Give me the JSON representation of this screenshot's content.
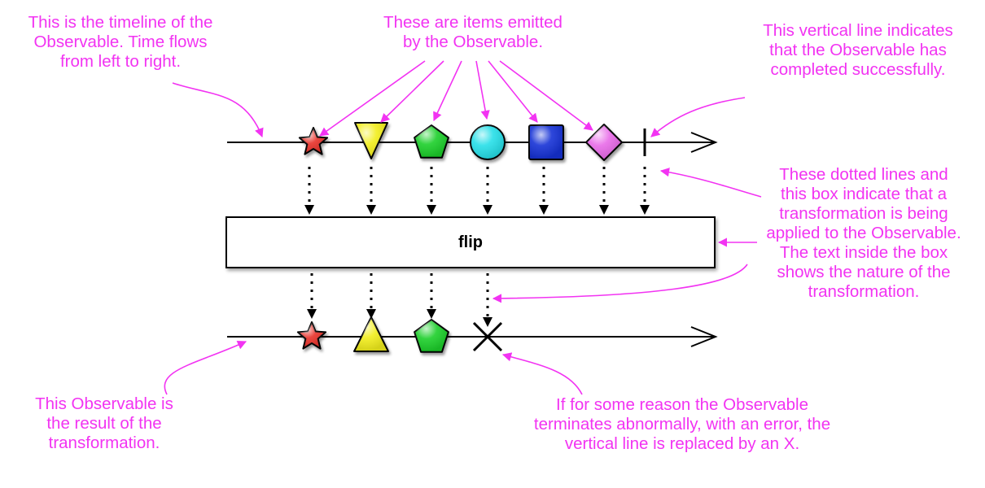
{
  "colors": {
    "annotation": "#f233f2",
    "line": "#000000",
    "star": "#e8312c",
    "triangle": "#f2ee1f",
    "pentagon": "#1fcf2a",
    "circle": "#25dfe8",
    "square": "#1432d6",
    "diamond": "#e86be8"
  },
  "operator": {
    "label": "flip"
  },
  "source_items": [
    {
      "shape": "star",
      "color": "#e8312c"
    },
    {
      "shape": "triangle-down",
      "color": "#f2ee1f"
    },
    {
      "shape": "pentagon",
      "color": "#1fcf2a"
    },
    {
      "shape": "circle",
      "color": "#25dfe8"
    },
    {
      "shape": "square",
      "color": "#1432d6"
    },
    {
      "shape": "diamond",
      "color": "#e86be8"
    }
  ],
  "result_items": [
    {
      "shape": "star",
      "color": "#e8312c"
    },
    {
      "shape": "triangle-up",
      "color": "#f2ee1f"
    },
    {
      "shape": "pentagon",
      "color": "#1fcf2a"
    },
    {
      "shape": "error-x",
      "color": "#000000"
    }
  ],
  "annotations": {
    "timeline": "This is the timeline of the\nObservable. Time flows\nfrom left to right.",
    "items": "These are items emitted\nby the Observable.",
    "completed": "This vertical line indicates\nthat the Observable has\ncompleted successfully.",
    "transformation": "These dotted lines and\nthis box indicate that a\ntransformation is being\napplied to the Observable.\nThe text inside the box\nshows the nature of the\ntransformation.",
    "result": "This Observable is\nthe result of the\ntransformation.",
    "error": "If for some reason the Observable\nterminates abnormally, with an error, the\nvertical line is replaced by an X."
  }
}
